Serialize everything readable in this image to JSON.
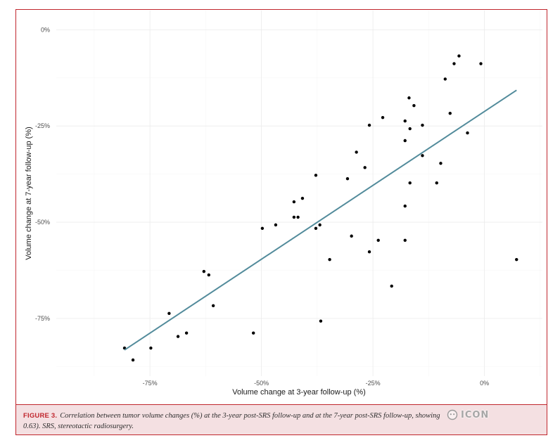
{
  "figure": {
    "caption_label": "FIGURE 3.",
    "caption_line1": "Correlation between tumor volume changes (%) at the 3-year post-SRS follow-up and at the 7-year post-SRS follow-up, showing",
    "caption_line2": "0.63). SRS, stereotactic radiosurgery.",
    "watermark_text": "ICON",
    "colors": {
      "frame_border": "#c0262d",
      "caption_background": "#f4e0e2",
      "caption_label": "#c0262d"
    }
  },
  "chart_data": {
    "type": "scatter",
    "xlabel": "Volume change at 3-year follow-up (%)",
    "ylabel": "Volume change at 7-year follow-up (%)",
    "xlim": [
      -96,
      13
    ],
    "ylim": [
      -90,
      5
    ],
    "x_ticks": [
      -75,
      -50,
      -25,
      0
    ],
    "x_tick_labels": [
      "-75%",
      "-50%",
      "-25%",
      "0%"
    ],
    "y_ticks": [
      0,
      -25,
      -50,
      -75
    ],
    "y_tick_labels": [
      "0%",
      "-25%",
      "-50%",
      "-75%"
    ],
    "grid": true,
    "series": [
      {
        "color": "#000000",
        "x": [
          -80.7,
          -78.8,
          -74.8,
          -70.7,
          -68.7,
          -66.8,
          -62.9,
          -61.8,
          -60.8,
          -51.8,
          -49.8,
          -46.8,
          -42.7,
          -42.7,
          -41.8,
          -40.8,
          -37.8,
          -37.8,
          -36.9,
          -36.7,
          -34.7,
          -30.7,
          -29.8,
          -28.7,
          -26.8,
          -25.8,
          -25.8,
          -23.8,
          -22.8,
          -20.8,
          -17.8,
          -17.8,
          -17.8,
          -17.8,
          -16.9,
          -16.7,
          -16.7,
          -15.8,
          -13.9,
          -13.9,
          -10.7,
          -9.8,
          -8.8,
          -7.7,
          -6.8,
          -5.7,
          -3.8,
          -0.8,
          7.2
        ],
        "y": [
          -82.7,
          -85.8,
          -82.7,
          -73.7,
          -79.7,
          -78.8,
          -62.8,
          -63.7,
          -71.7,
          -78.8,
          -51.6,
          -50.7,
          -44.7,
          -48.7,
          -48.7,
          -43.8,
          -37.8,
          -51.6,
          -50.7,
          -75.7,
          -59.7,
          -38.7,
          -53.6,
          -31.8,
          -35.8,
          -24.8,
          -57.7,
          -54.7,
          -22.8,
          -66.6,
          -23.7,
          -28.8,
          -45.8,
          -54.7,
          -17.7,
          -25.7,
          -39.8,
          -19.7,
          -24.8,
          -32.7,
          -39.8,
          -34.7,
          -12.8,
          -21.7,
          -8.8,
          -6.8,
          -26.8,
          -8.8,
          -59.7
        ]
      }
    ],
    "trend_line": {
      "color": "#528b9b",
      "x": [
        -80.7,
        7.2
      ],
      "y": [
        -83.2,
        -15.7
      ]
    }
  }
}
